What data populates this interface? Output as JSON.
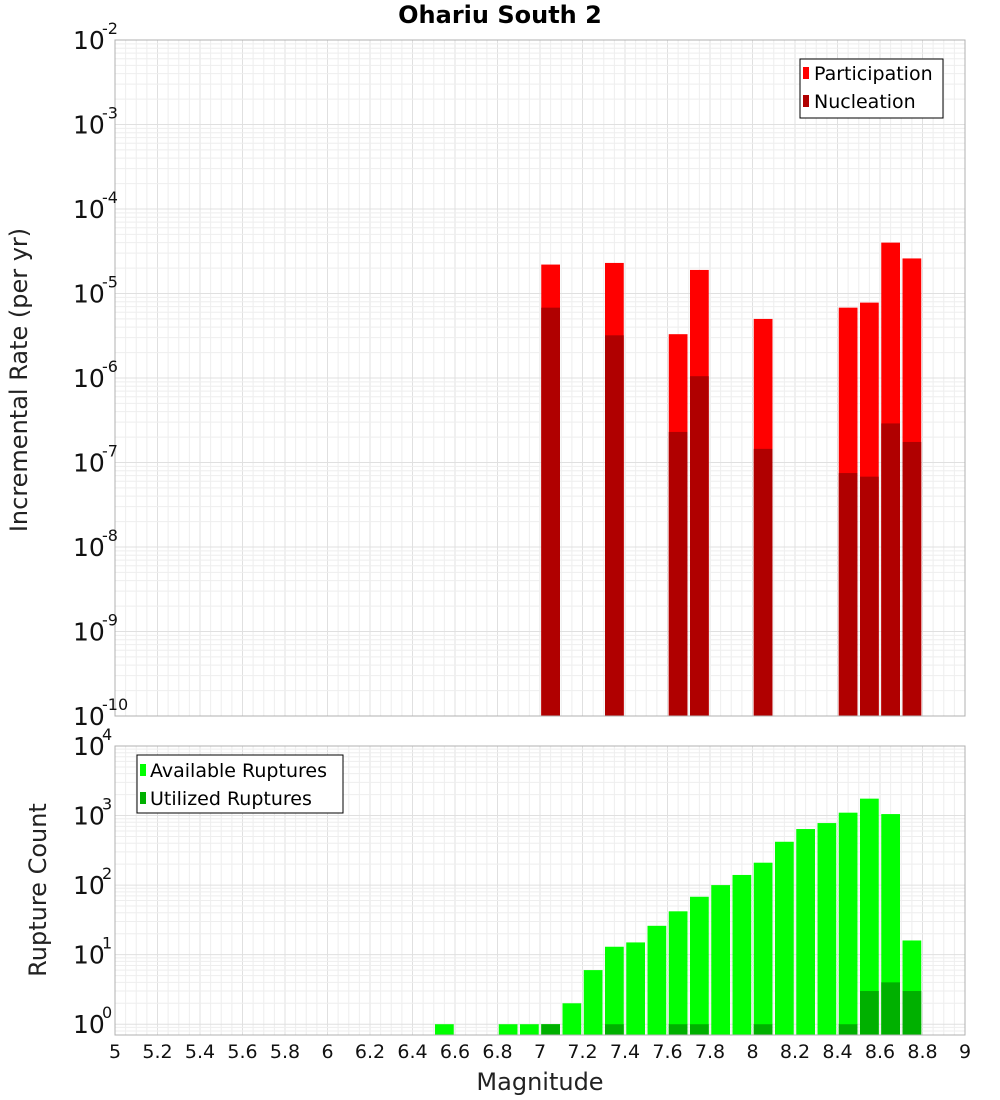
{
  "chart_data": [
    {
      "type": "bar",
      "title": "Ohariu South 2",
      "xlabel": "",
      "ylabel": "Incremental Rate (per yr)",
      "yscale": "log",
      "ylim": [
        1e-10,
        0.01
      ],
      "xlim": [
        5,
        9
      ],
      "y_tick_exponents": [
        "-2",
        "-3",
        "-4",
        "-5",
        "-6",
        "-7",
        "-8",
        "-9",
        "-10"
      ],
      "y_tick_base": "10",
      "legend_position": "top-right",
      "series": [
        {
          "name": "Participation",
          "color": "#ff0000",
          "x": [
            7.05,
            7.35,
            7.65,
            7.75,
            8.05,
            8.45,
            8.55,
            8.65,
            8.75
          ],
          "values": [
            2.2e-05,
            2.3e-05,
            3.3e-06,
            1.9e-05,
            5e-06,
            6.8e-06,
            7.8e-06,
            4e-05,
            2.6e-05
          ]
        },
        {
          "name": "Nucleation",
          "color": "#b00000",
          "x": [
            7.05,
            7.35,
            7.65,
            7.75,
            8.05,
            8.45,
            8.55,
            8.65,
            8.75
          ],
          "values": [
            6.8e-06,
            3.2e-06,
            2.3e-07,
            1.05e-06,
            1.45e-07,
            7.5e-08,
            6.8e-08,
            2.9e-07,
            1.75e-07
          ]
        }
      ]
    },
    {
      "type": "bar",
      "title": "",
      "xlabel": "Magnitude",
      "ylabel": "Rupture Count",
      "yscale": "log",
      "ylim": [
        0.7,
        10000
      ],
      "xlim": [
        5,
        9
      ],
      "x_ticks": [
        "5",
        "5.2",
        "5.4",
        "5.6",
        "5.8",
        "6",
        "6.2",
        "6.4",
        "6.6",
        "6.8",
        "7",
        "7.2",
        "7.4",
        "7.6",
        "7.8",
        "8",
        "8.2",
        "8.4",
        "8.6",
        "8.8",
        "9"
      ],
      "y_tick_exponents": [
        "4",
        "3",
        "2",
        "1",
        "0"
      ],
      "y_tick_base": "10",
      "legend_position": "top-left",
      "series": [
        {
          "name": "Available Ruptures",
          "color": "#00ff00",
          "x": [
            6.55,
            6.85,
            6.95,
            7.05,
            7.15,
            7.25,
            7.35,
            7.45,
            7.55,
            7.65,
            7.75,
            7.85,
            7.95,
            8.05,
            8.15,
            8.25,
            8.35,
            8.45,
            8.55,
            8.65,
            8.75
          ],
          "values": [
            1,
            1,
            1,
            1,
            2,
            6,
            13,
            15,
            26,
            42,
            68,
            100,
            140,
            210,
            420,
            640,
            780,
            1100,
            1750,
            1050,
            16
          ]
        },
        {
          "name": "Utilized Ruptures",
          "color": "#00b000",
          "x": [
            7.05,
            7.35,
            7.65,
            7.75,
            8.05,
            8.45,
            8.55,
            8.65,
            8.75
          ],
          "values": [
            1,
            1,
            1,
            1,
            1,
            1,
            3,
            4,
            3
          ]
        }
      ]
    }
  ]
}
